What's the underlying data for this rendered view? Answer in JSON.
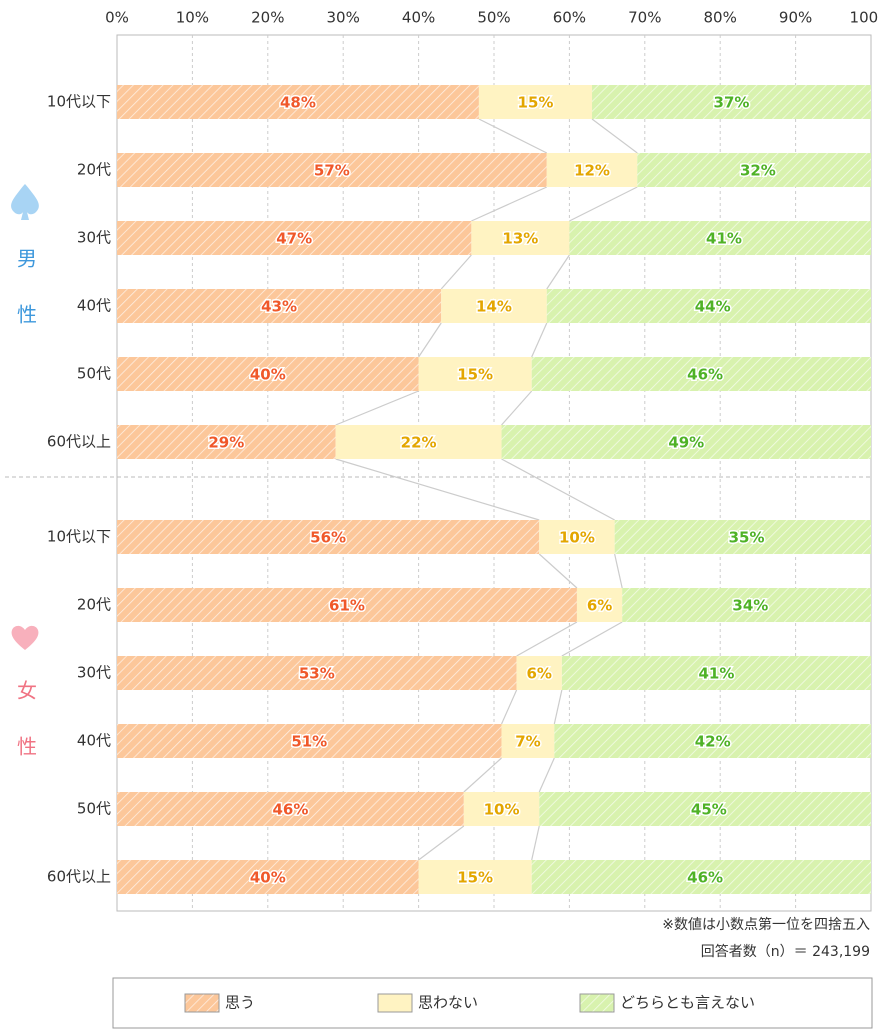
{
  "chart_data": {
    "type": "stacked_bar_horizontal",
    "groups": [
      "男性",
      "女性"
    ],
    "categories": [
      "10代以下",
      "20代",
      "30代",
      "40代",
      "50代",
      "60代以上",
      "10代以下",
      "20代",
      "30代",
      "40代",
      "50代",
      "60代以上"
    ],
    "series": [
      {
        "name": "思う",
        "color": "#fcc79a",
        "label_color": "#f0582a",
        "values": [
          48,
          57,
          47,
          43,
          40,
          29,
          56,
          61,
          53,
          51,
          46,
          40
        ],
        "value_labels": [
          "48%",
          "57%",
          "47%",
          "43%",
          "40%",
          "29%",
          "56%",
          "61%",
          "53%",
          "51%",
          "46%",
          "40%"
        ]
      },
      {
        "name": "思わない",
        "color": "#fff3c2",
        "label_color": "#e3a600",
        "values": [
          15,
          12,
          13,
          14,
          15,
          22,
          10,
          6,
          6,
          7,
          10,
          15
        ],
        "value_labels": [
          "15%",
          "12%",
          "13%",
          "14%",
          "15%",
          "22%",
          "10%",
          "6%",
          "6%",
          "7%",
          "10%",
          "15%"
        ]
      },
      {
        "name": "どちらとも言えない",
        "color": "#d8f2ae",
        "label_color": "#4fb226",
        "values": [
          37,
          32,
          41,
          44,
          46,
          49,
          35,
          34,
          41,
          42,
          45,
          46
        ],
        "value_labels": [
          "37%",
          "32%",
          "41%",
          "44%",
          "46%",
          "49%",
          "35%",
          "34%",
          "41%",
          "42%",
          "45%",
          "46%"
        ]
      }
    ],
    "xlim": [
      0,
      100
    ],
    "xticks": [
      {
        "value": 0,
        "label": "0%"
      },
      {
        "value": 10,
        "label": "10%"
      },
      {
        "value": 20,
        "label": "20%"
      },
      {
        "value": 30,
        "label": "30%"
      },
      {
        "value": 40,
        "label": "40%"
      },
      {
        "value": 50,
        "label": "50%"
      },
      {
        "value": 60,
        "label": "60%"
      },
      {
        "value": 70,
        "label": "70%"
      },
      {
        "value": 80,
        "label": "80%"
      },
      {
        "value": 90,
        "label": "90%"
      },
      {
        "value": 100,
        "label": "100%"
      }
    ],
    "grid": true,
    "notes": [
      "※数値は小数点第一位を四捨五入",
      "回答者数（n）＝ 243,199"
    ]
  }
}
